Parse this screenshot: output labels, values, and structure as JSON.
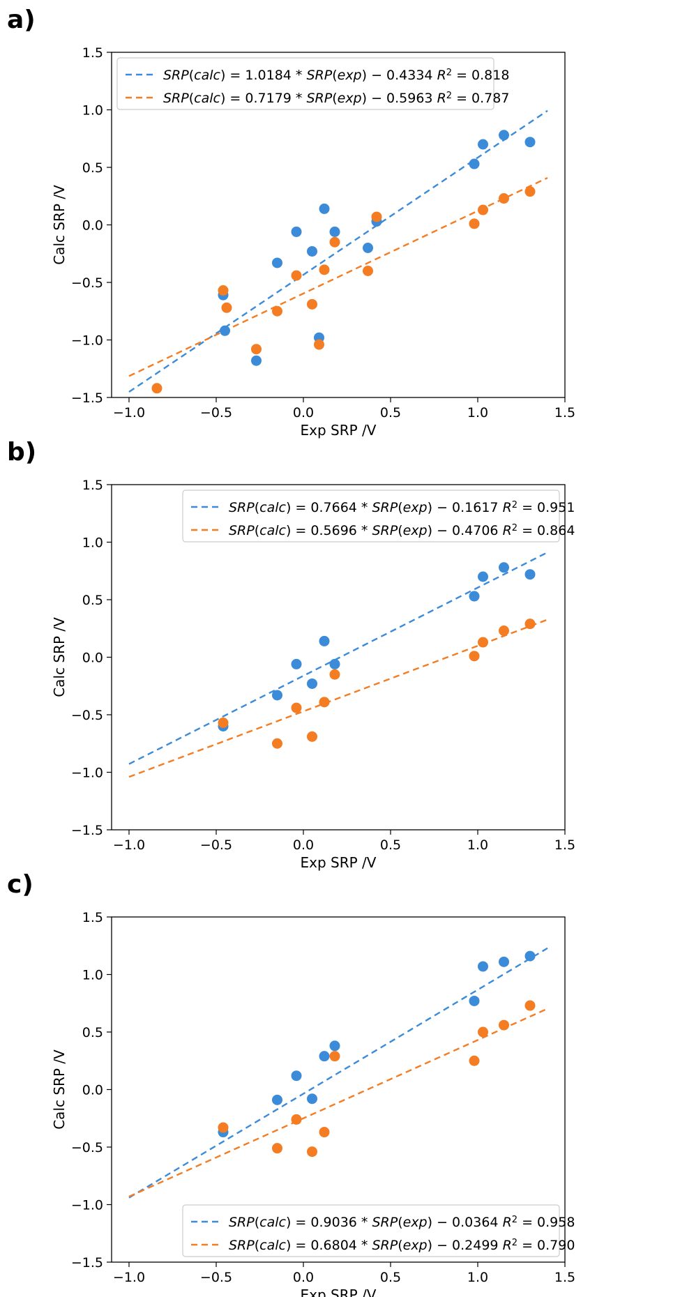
{
  "colors": {
    "blue": "#3b8bd9",
    "orange": "#f47c22"
  },
  "chart_data": [
    {
      "label": "a)",
      "type": "scatter",
      "xlabel": "Exp SRP /V",
      "ylabel": "Calc SRP /V",
      "xlim": [
        -1.1,
        1.5
      ],
      "ylim": [
        -1.5,
        1.5
      ],
      "xticks": [
        "−1.0",
        "−0.5",
        "0.0",
        "0.5",
        "1.0",
        "1.5"
      ],
      "yticks": [
        "−1.5",
        "−1.0",
        "−0.5",
        "0.0",
        "0.5",
        "1.0",
        "1.5"
      ],
      "legend_position": "top-left",
      "series": [
        {
          "color": "blue",
          "fit": {
            "slope": 1.0184,
            "intercept": -0.4334,
            "x_range": [
              -1.0,
              1.4
            ]
          },
          "legend": "SRP(calc) = 1.0184 * SRP(exp) − 0.4334 R² = 0.818",
          "points": [
            [
              -0.46,
              -0.61
            ],
            [
              -0.45,
              -0.92
            ],
            [
              -0.27,
              -1.18
            ],
            [
              -0.15,
              -0.33
            ],
            [
              -0.04,
              -0.06
            ],
            [
              0.05,
              -0.23
            ],
            [
              0.09,
              -0.98
            ],
            [
              0.12,
              0.14
            ],
            [
              0.18,
              -0.06
            ],
            [
              0.37,
              -0.2
            ],
            [
              0.42,
              0.03
            ],
            [
              0.98,
              0.53
            ],
            [
              1.03,
              0.7
            ],
            [
              1.15,
              0.78
            ],
            [
              1.3,
              0.72
            ]
          ]
        },
        {
          "color": "orange",
          "fit": {
            "slope": 0.7179,
            "intercept": -0.5963,
            "x_range": [
              -1.0,
              1.4
            ]
          },
          "legend": "SRP(calc) = 0.7179 * SRP(exp) − 0.5963 R² = 0.787",
          "points": [
            [
              -0.84,
              -1.42
            ],
            [
              -0.46,
              -0.57
            ],
            [
              -0.44,
              -0.72
            ],
            [
              -0.27,
              -1.08
            ],
            [
              -0.15,
              -0.75
            ],
            [
              -0.04,
              -0.44
            ],
            [
              0.05,
              -0.69
            ],
            [
              0.09,
              -1.04
            ],
            [
              0.12,
              -0.39
            ],
            [
              0.18,
              -0.15
            ],
            [
              0.37,
              -0.4
            ],
            [
              0.42,
              0.07
            ],
            [
              0.98,
              0.01
            ],
            [
              1.03,
              0.13
            ],
            [
              1.15,
              0.23
            ],
            [
              1.3,
              0.29
            ]
          ]
        }
      ]
    },
    {
      "label": "b)",
      "type": "scatter",
      "xlabel": "Exp SRP /V",
      "ylabel": "Calc SRP /V",
      "xlim": [
        -1.1,
        1.5
      ],
      "ylim": [
        -1.5,
        1.5
      ],
      "xticks": [
        "−1.0",
        "−0.5",
        "0.0",
        "0.5",
        "1.0",
        "1.5"
      ],
      "yticks": [
        "−1.5",
        "−1.0",
        "−0.5",
        "0.0",
        "0.5",
        "1.0",
        "1.5"
      ],
      "legend_position": "top-right",
      "series": [
        {
          "color": "blue",
          "fit": {
            "slope": 0.7664,
            "intercept": -0.1617,
            "x_range": [
              -1.0,
              1.4
            ]
          },
          "legend": "SRP(calc) = 0.7664 * SRP(exp) − 0.1617 R² = 0.951",
          "points": [
            [
              -0.46,
              -0.6
            ],
            [
              -0.15,
              -0.33
            ],
            [
              -0.04,
              -0.06
            ],
            [
              0.05,
              -0.23
            ],
            [
              0.12,
              0.14
            ],
            [
              0.18,
              -0.06
            ],
            [
              0.98,
              0.53
            ],
            [
              1.03,
              0.7
            ],
            [
              1.15,
              0.78
            ],
            [
              1.3,
              0.72
            ]
          ]
        },
        {
          "color": "orange",
          "fit": {
            "slope": 0.5696,
            "intercept": -0.4706,
            "x_range": [
              -1.0,
              1.4
            ]
          },
          "legend": "SRP(calc) = 0.5696 * SRP(exp) − 0.4706 R² = 0.864",
          "points": [
            [
              -0.46,
              -0.57
            ],
            [
              -0.15,
              -0.75
            ],
            [
              -0.04,
              -0.44
            ],
            [
              0.05,
              -0.69
            ],
            [
              0.12,
              -0.39
            ],
            [
              0.18,
              -0.15
            ],
            [
              0.98,
              0.01
            ],
            [
              1.03,
              0.13
            ],
            [
              1.15,
              0.23
            ],
            [
              1.3,
              0.29
            ]
          ]
        }
      ]
    },
    {
      "label": "c)",
      "type": "scatter",
      "xlabel": "Exp SRP /V",
      "ylabel": "Calc SRP /V",
      "xlim": [
        -1.1,
        1.5
      ],
      "ylim": [
        -1.5,
        1.5
      ],
      "xticks": [
        "−1.0",
        "−0.5",
        "0.0",
        "0.5",
        "1.0",
        "1.5"
      ],
      "yticks": [
        "−1.5",
        "−1.0",
        "−0.5",
        "0.0",
        "0.5",
        "1.0",
        "1.5"
      ],
      "legend_position": "bottom-right",
      "series": [
        {
          "color": "blue",
          "fit": {
            "slope": 0.9036,
            "intercept": -0.0364,
            "x_range": [
              -1.0,
              1.4
            ]
          },
          "legend": "SRP(calc) = 0.9036 * SRP(exp) − 0.0364 R² = 0.958",
          "points": [
            [
              -0.46,
              -0.37
            ],
            [
              -0.15,
              -0.09
            ],
            [
              -0.04,
              0.12
            ],
            [
              0.05,
              -0.08
            ],
            [
              0.12,
              0.29
            ],
            [
              0.18,
              0.38
            ],
            [
              0.98,
              0.77
            ],
            [
              1.03,
              1.07
            ],
            [
              1.15,
              1.11
            ],
            [
              1.3,
              1.16
            ]
          ]
        },
        {
          "color": "orange",
          "fit": {
            "slope": 0.6804,
            "intercept": -0.2499,
            "x_range": [
              -1.0,
              1.4
            ]
          },
          "legend": "SRP(calc) = 0.6804 * SRP(exp) − 0.2499 R² = 0.790",
          "points": [
            [
              -0.46,
              -0.33
            ],
            [
              -0.15,
              -0.51
            ],
            [
              -0.04,
              -0.26
            ],
            [
              0.05,
              -0.54
            ],
            [
              0.12,
              -0.37
            ],
            [
              0.18,
              0.29
            ],
            [
              0.98,
              0.25
            ],
            [
              1.03,
              0.5
            ],
            [
              1.15,
              0.56
            ],
            [
              1.3,
              0.73
            ]
          ]
        }
      ]
    }
  ]
}
